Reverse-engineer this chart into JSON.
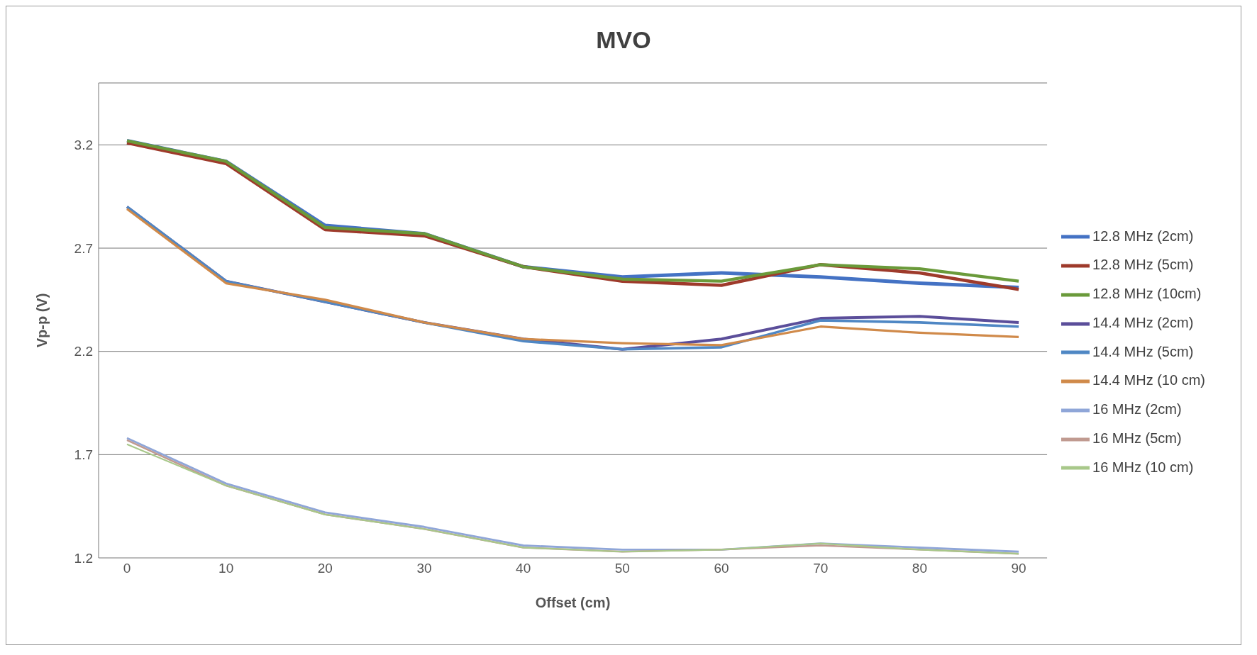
{
  "chart_data": {
    "type": "line",
    "title": "MVO",
    "xlabel": "Offset (cm)",
    "ylabel": "Vp-p (V)",
    "categories": [
      "0",
      "10",
      "20",
      "30",
      "40",
      "50",
      "60",
      "70",
      "80",
      "90"
    ],
    "ylim": [
      1.2,
      3.5
    ],
    "yticks": [
      1.2,
      1.7,
      2.2,
      2.7,
      3.2
    ],
    "grid": "y",
    "legend": "right",
    "marker": "none",
    "line_style": "solid",
    "series": [
      {
        "name": "12.8 MHz (2cm)",
        "color": "#4472c4",
        "values": [
          3.22,
          3.12,
          2.81,
          2.77,
          2.61,
          2.56,
          2.58,
          2.56,
          2.53,
          2.51
        ]
      },
      {
        "name": "12.8 MHz (5cm)",
        "color": "#9e3a2b",
        "values": [
          3.21,
          3.11,
          2.79,
          2.76,
          2.61,
          2.54,
          2.52,
          2.62,
          2.58,
          2.5
        ]
      },
      {
        "name": "12.8 MHz (10cm)",
        "color": "#6a9a3a",
        "values": [
          3.22,
          3.12,
          2.8,
          2.77,
          2.61,
          2.55,
          2.54,
          2.62,
          2.6,
          2.54
        ]
      },
      {
        "name": "14.4 MHz (2cm)",
        "color": "#5b4e9a",
        "values": [
          2.9,
          2.54,
          2.44,
          2.34,
          2.26,
          2.21,
          2.26,
          2.36,
          2.37,
          2.34
        ]
      },
      {
        "name": "14.4 MHz (5cm)",
        "color": "#4f87c4",
        "values": [
          2.9,
          2.54,
          2.44,
          2.34,
          2.25,
          2.21,
          2.22,
          2.35,
          2.34,
          2.32
        ]
      },
      {
        "name": "14.4 MHz (10 cm)",
        "color": "#d08a4a",
        "values": [
          2.89,
          2.53,
          2.45,
          2.34,
          2.26,
          2.24,
          2.23,
          2.32,
          2.29,
          2.27
        ]
      },
      {
        "name": "16 MHz (2cm)",
        "color": "#8fa6d8",
        "values": [
          1.78,
          1.56,
          1.42,
          1.35,
          1.26,
          1.24,
          1.24,
          1.27,
          1.25,
          1.23
        ]
      },
      {
        "name": "16 MHz (5cm)",
        "color": "#c09a90",
        "values": [
          1.77,
          1.55,
          1.41,
          1.34,
          1.25,
          1.23,
          1.24,
          1.26,
          1.24,
          1.22
        ]
      },
      {
        "name": "16 MHz (10 cm)",
        "color": "#a8c88a",
        "values": [
          1.75,
          1.55,
          1.41,
          1.34,
          1.25,
          1.23,
          1.24,
          1.27,
          1.24,
          1.22
        ]
      }
    ]
  }
}
